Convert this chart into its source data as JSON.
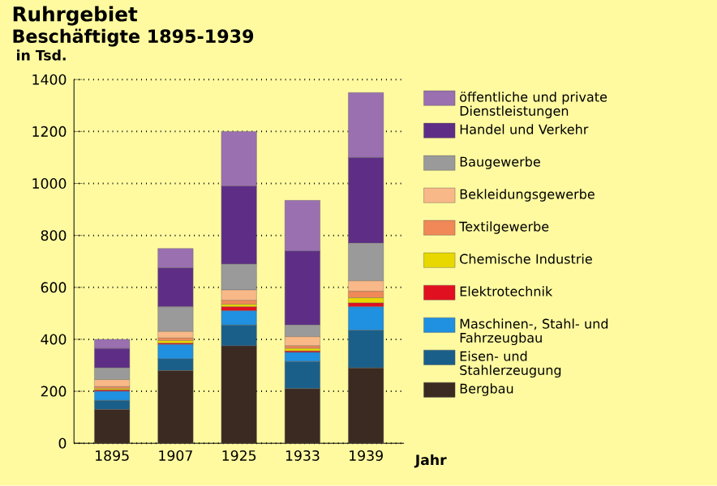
{
  "chart_data": {
    "type": "bar",
    "stacked": true,
    "title": "Ruhrgebiet",
    "subtitle": "Beschäftigte 1895-1939",
    "ylabel": "in Tsd.",
    "xlabel": "Jahr",
    "categories": [
      "1895",
      "1907",
      "1925",
      "1933",
      "1939"
    ],
    "ylim": [
      0,
      1400
    ],
    "yticks": [
      0,
      200,
      400,
      600,
      800,
      1000,
      1200,
      1400
    ],
    "grid": "y",
    "legend": "right",
    "series": [
      {
        "name": "Bergbau",
        "color": "#3a2a22",
        "values": [
          130,
          280,
          375,
          210,
          290
        ]
      },
      {
        "name": "Eisen- und Stahlerzeugung",
        "color": "#1a5f8a",
        "values": [
          35,
          45,
          80,
          105,
          145
        ]
      },
      {
        "name": "Maschinen-, Stahl- und Fahrzeugbau",
        "color": "#2090e0",
        "values": [
          35,
          55,
          55,
          35,
          90
        ]
      },
      {
        "name": "Elektrotechnik",
        "color": "#e01020",
        "values": [
          5,
          5,
          15,
          5,
          15
        ]
      },
      {
        "name": "Chemische Industrie",
        "color": "#e8d800",
        "values": [
          5,
          10,
          10,
          10,
          20
        ]
      },
      {
        "name": "Textilgewerbe",
        "color": "#f08858",
        "values": [
          8,
          10,
          15,
          10,
          25
        ]
      },
      {
        "name": "Bekleidungsgewerbe",
        "color": "#f8b888",
        "values": [
          27,
          25,
          40,
          35,
          40
        ]
      },
      {
        "name": "Baugewerbe",
        "color": "#9a9a9a",
        "values": [
          45,
          95,
          100,
          45,
          145
        ]
      },
      {
        "name": "Handel und Verkehr",
        "color": "#5e2e86",
        "values": [
          75,
          150,
          300,
          285,
          330
        ]
      },
      {
        "name": "öffentliche und private Dienstleistungen",
        "color": "#9a70b0",
        "values": [
          35,
          75,
          210,
          195,
          250
        ]
      }
    ]
  }
}
